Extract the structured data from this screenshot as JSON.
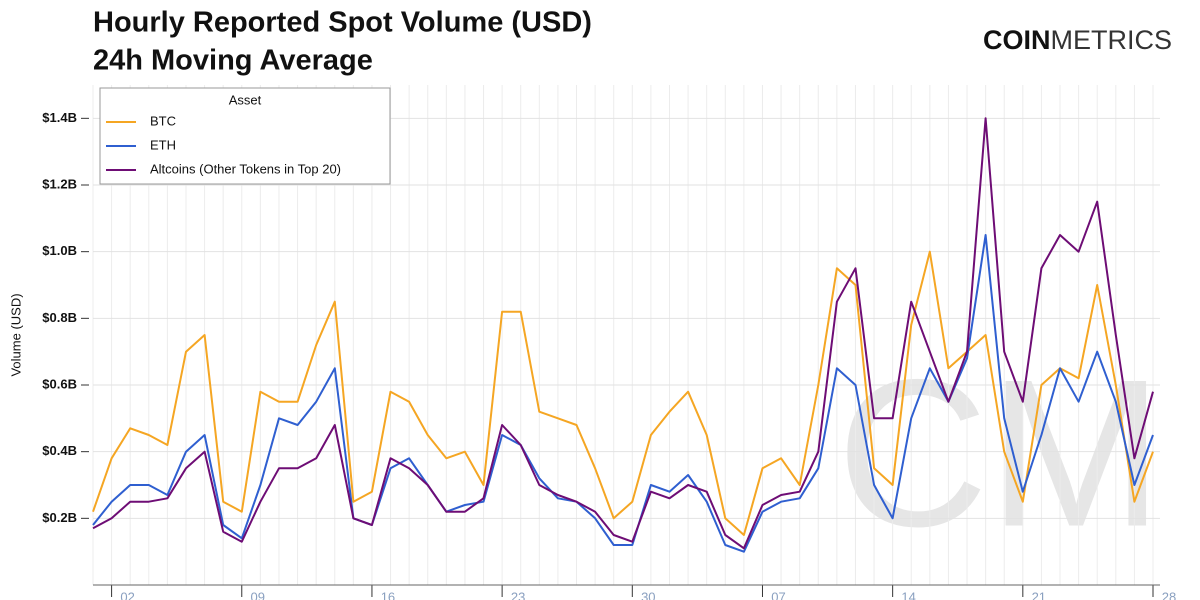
{
  "brand": [
    "COIN",
    "METRICS"
  ],
  "watermark": "CM",
  "chart_data": {
    "type": "line",
    "title": "Hourly Reported Spot Volume (USD)",
    "subtitle": "24h Moving Average",
    "y_label": "Volume (USD)",
    "legend_title": "Asset",
    "legend": "upper left",
    "grid": true,
    "categories": [
      null,
      "02",
      null,
      null,
      null,
      null,
      null,
      null,
      "09",
      null,
      null,
      null,
      null,
      null,
      null,
      "16",
      null,
      null,
      null,
      null,
      null,
      null,
      "23",
      null,
      null,
      null,
      null,
      null,
      null,
      "30",
      null,
      null,
      null,
      null,
      null,
      null,
      "07",
      null,
      null,
      null,
      null,
      null,
      null,
      "14",
      null,
      null,
      null,
      null,
      null,
      null,
      "21",
      null,
      null,
      null,
      null,
      null,
      null,
      "28"
    ],
    "ylim": [
      0,
      1500000000.0
    ],
    "yticks": [
      {
        "value": 200000000.0,
        "label": "$0.2B"
      },
      {
        "value": 400000000.0,
        "label": "$0.4B"
      },
      {
        "value": 600000000.0,
        "label": "$0.6B"
      },
      {
        "value": 800000000.0,
        "label": "$0.8B"
      },
      {
        "value": 1000000000.0,
        "label": "$1.0B"
      },
      {
        "value": 1200000000.0,
        "label": "$1.2B"
      },
      {
        "value": 1400000000.0,
        "label": "$1.4B"
      }
    ],
    "series": [
      {
        "name": "BTC",
        "color": "#f5a623",
        "values": [
          220000000.0,
          380000000.0,
          470000000.0,
          450000000.0,
          420000000.0,
          700000000.0,
          750000000.0,
          250000000.0,
          220000000.0,
          580000000.0,
          550000000.0,
          550000000.0,
          720000000.0,
          850000000.0,
          250000000.0,
          280000000.0,
          580000000.0,
          550000000.0,
          450000000.0,
          380000000.0,
          400000000.0,
          300000000.0,
          820000000.0,
          820000000.0,
          520000000.0,
          500000000.0,
          480000000.0,
          350000000.0,
          200000000.0,
          250000000.0,
          450000000.0,
          520000000.0,
          580000000.0,
          450000000.0,
          200000000.0,
          150000000.0,
          350000000.0,
          380000000.0,
          300000000.0,
          600000000.0,
          950000000.0,
          900000000.0,
          350000000.0,
          300000000.0,
          780000000.0,
          1000000000.0,
          650000000.0,
          700000000.0,
          750000000.0,
          400000000.0,
          250000000.0,
          600000000.0,
          650000000.0,
          620000000.0,
          900000000.0,
          600000000.0,
          250000000.0,
          400000000.0
        ]
      },
      {
        "name": "ETH",
        "color": "#2f5fd0",
        "values": [
          180000000.0,
          250000000.0,
          300000000.0,
          300000000.0,
          270000000.0,
          400000000.0,
          450000000.0,
          180000000.0,
          140000000.0,
          300000000.0,
          500000000.0,
          480000000.0,
          550000000.0,
          650000000.0,
          200000000.0,
          180000000.0,
          350000000.0,
          380000000.0,
          300000000.0,
          220000000.0,
          240000000.0,
          250000000.0,
          450000000.0,
          420000000.0,
          320000000.0,
          260000000.0,
          250000000.0,
          200000000.0,
          120000000.0,
          120000000.0,
          300000000.0,
          280000000.0,
          330000000.0,
          250000000.0,
          120000000.0,
          100000000.0,
          220000000.0,
          250000000.0,
          260000000.0,
          350000000.0,
          650000000.0,
          600000000.0,
          300000000.0,
          200000000.0,
          500000000.0,
          650000000.0,
          550000000.0,
          680000000.0,
          1050000000.0,
          500000000.0,
          280000000.0,
          450000000.0,
          650000000.0,
          550000000.0,
          700000000.0,
          550000000.0,
          300000000.0,
          450000000.0
        ]
      },
      {
        "name": "Altcoins (Other Tokens in Top 20)",
        "color": "#6e0d75",
        "values": [
          170000000.0,
          200000000.0,
          250000000.0,
          250000000.0,
          260000000.0,
          350000000.0,
          400000000.0,
          160000000.0,
          130000000.0,
          250000000.0,
          350000000.0,
          350000000.0,
          380000000.0,
          480000000.0,
          200000000.0,
          180000000.0,
          380000000.0,
          350000000.0,
          300000000.0,
          220000000.0,
          220000000.0,
          260000000.0,
          480000000.0,
          420000000.0,
          300000000.0,
          270000000.0,
          250000000.0,
          220000000.0,
          150000000.0,
          130000000.0,
          280000000.0,
          260000000.0,
          300000000.0,
          280000000.0,
          150000000.0,
          110000000.0,
          240000000.0,
          270000000.0,
          280000000.0,
          400000000.0,
          850000000.0,
          950000000.0,
          500000000.0,
          500000000.0,
          850000000.0,
          700000000.0,
          550000000.0,
          700000000.0,
          1400000000.0,
          700000000.0,
          550000000.0,
          950000000.0,
          1050000000.0,
          1000000000.0,
          1150000000.0,
          750000000.0,
          380000000.0,
          580000000.0
        ]
      }
    ]
  }
}
